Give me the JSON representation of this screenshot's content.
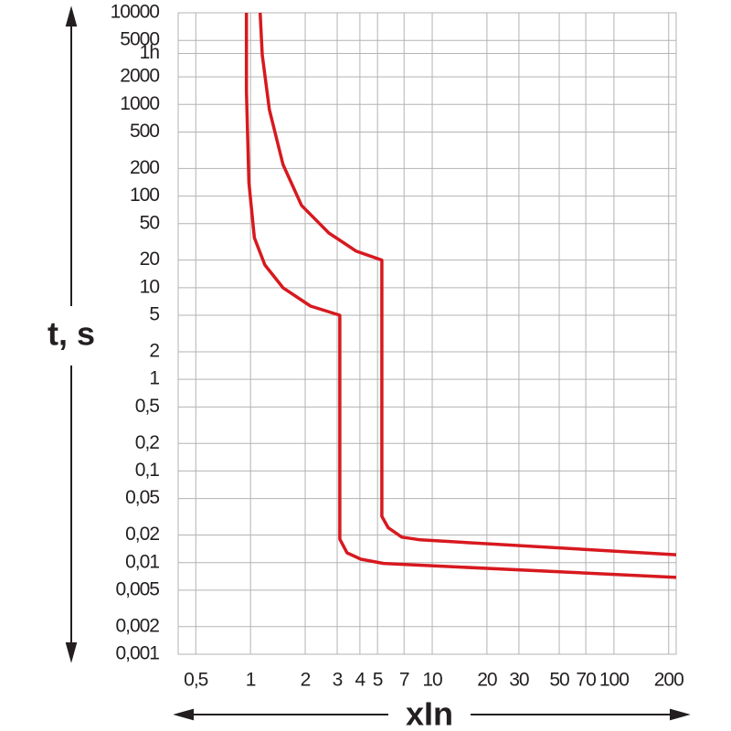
{
  "chart_data": {
    "type": "line",
    "ylabel": "t, s",
    "xlabel": "xIn",
    "xlog": true,
    "ylog": true,
    "grid": true,
    "xlim": [
      0.4,
      220
    ],
    "ylim": [
      0.001,
      10000
    ],
    "xticks": [
      {
        "value": 0.5,
        "label": "0,5"
      },
      1,
      2,
      3,
      4,
      5,
      7,
      10,
      20,
      30,
      50,
      70,
      100,
      200
    ],
    "yticks": [
      10000,
      5000,
      {
        "value": 3600,
        "label": "1h"
      },
      2000,
      1000,
      500,
      200,
      100,
      50,
      20,
      10,
      5,
      2,
      1,
      {
        "value": 0.5,
        "label": "0,5"
      },
      {
        "value": 0.2,
        "label": "0,2"
      },
      {
        "value": 0.1,
        "label": "0,1"
      },
      {
        "value": 0.05,
        "label": "0,05"
      },
      {
        "value": 0.02,
        "label": "0,02"
      },
      {
        "value": 0.01,
        "label": "0,01"
      },
      {
        "value": 0.005,
        "label": "0,005"
      },
      {
        "value": 0.002,
        "label": "0,002"
      },
      {
        "value": 0.001,
        "label": "0,001"
      }
    ],
    "series": [
      {
        "color": "#d7191f",
        "x": [
          0.95,
          0.95,
          0.98,
          1.05,
          1.2,
          1.51,
          2.14,
          3.1,
          3.1,
          3.4,
          4.05,
          5.4,
          220
        ],
        "values": [
          10000,
          1390,
          140,
          35,
          17.7,
          10,
          6.3,
          5,
          0.018,
          0.0128,
          0.0109,
          0.0098,
          0.0069
        ]
      },
      {
        "color": "#d7191f",
        "x": [
          1.13,
          1.16,
          1.27,
          1.51,
          1.91,
          2.7,
          3.82,
          5.28,
          5.28,
          5.73,
          6.8,
          8.6,
          220
        ],
        "values": [
          10000,
          3475,
          877,
          221,
          79,
          39.5,
          25,
          20,
          0.032,
          0.024,
          0.019,
          0.0177,
          0.0122
        ]
      }
    ]
  }
}
